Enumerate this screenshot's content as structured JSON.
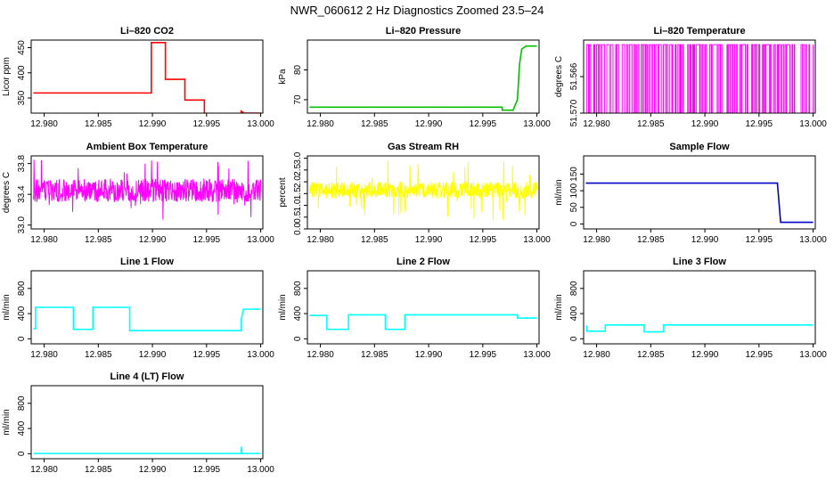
{
  "figure": {
    "title": "NWR_060612  2 Hz Diagnostics Zoomed 23.5–24"
  },
  "chart_data": [
    {
      "type": "line",
      "title": "Li–820 CO2",
      "ylabel": "Licor ppm",
      "color": "#ff0000",
      "xlim": [
        12.9788,
        13.0002
      ],
      "ylim": [
        320,
        465
      ],
      "xticks": [
        "12.980",
        "12.985",
        "12.990",
        "12.995",
        "13.000"
      ],
      "yticks": [
        350,
        400,
        450
      ],
      "series": [
        {
          "x": [
            12.979,
            12.9899,
            12.9899,
            12.9912,
            12.9912,
            12.993,
            12.993,
            12.9948,
            12.9948,
            12.9982,
            12.9982,
            12.9986,
            12.9986,
            13.0
          ],
          "values": [
            360,
            360,
            460,
            460,
            387,
            387,
            346,
            346,
            318,
            318,
            324,
            318,
            320,
            320
          ]
        }
      ]
    },
    {
      "type": "line",
      "title": "Li–820 Pressure",
      "ylabel": "kPa",
      "color": "#00c000",
      "xlim": [
        12.9788,
        13.0002
      ],
      "ylim": [
        65.5,
        90
      ],
      "xticks": [
        "12.980",
        "12.985",
        "12.990",
        "12.995",
        "13.000"
      ],
      "yticks": [
        70,
        80
      ],
      "series": [
        {
          "x": [
            12.979,
            12.9968,
            12.9968,
            12.9978,
            12.9982,
            12.9984,
            12.9986,
            12.999,
            13.0
          ],
          "values": [
            67.5,
            67.5,
            66.5,
            66.5,
            70,
            82,
            87,
            88,
            88
          ]
        }
      ]
    },
    {
      "type": "line",
      "title": "Li–820 Temperature",
      "ylabel": "degrees C",
      "color": "#ff00ff",
      "xlim": [
        12.9788,
        13.0002
      ],
      "ylim": [
        51.57,
        51.562
      ],
      "xticks": [
        "12.980",
        "12.985",
        "12.990",
        "12.995",
        "13.000"
      ],
      "yticks": [
        51.57,
        51.566
      ],
      "ytick_labels": [
        "51.570",
        "51.566"
      ],
      "levels": [
        51.57,
        51.5625
      ],
      "series": [
        {
          "x": [
            12.979,
            13.0
          ],
          "values": [
            51.57,
            51.5625
          ]
        }
      ]
    },
    {
      "type": "line",
      "title": "Ambient Box Temperature",
      "ylabel": "degrees C",
      "color": "#ff00ff",
      "xlim": [
        12.9788,
        13.0002
      ],
      "ylim": [
        32.95,
        33.9
      ],
      "xticks": [
        "12.980",
        "12.985",
        "12.990",
        "12.995",
        "13.000"
      ],
      "yticks": [
        33.0,
        33.4,
        33.8
      ],
      "ytick_labels": [
        "33.0",
        "33.4",
        "33.8"
      ],
      "noise": {
        "center": 33.45,
        "amplitude": 0.15,
        "spike": 0.4
      },
      "series": [
        {
          "x": [
            12.979,
            13.0
          ],
          "values": [
            33.45,
            33.45
          ]
        }
      ]
    },
    {
      "type": "line",
      "title": "Gas Stream RH",
      "ylabel": "percent",
      "color": "#ffff00",
      "xlim": [
        12.9788,
        13.0002
      ],
      "ylim": [
        0,
        3.1
      ],
      "xticks": [
        "12.980",
        "12.985",
        "12.990",
        "12.995",
        "13.000"
      ],
      "yticks": [
        0.0,
        0.5,
        1.0,
        1.5,
        2.0,
        2.5,
        3.0
      ],
      "ytick_labels": [
        "0.0",
        "0.5",
        "1.0",
        "1.5",
        "2.0",
        "2.5",
        "3.0"
      ],
      "noise": {
        "center": 1.65,
        "amplitude": 0.35,
        "spike": 1.3
      },
      "series": [
        {
          "x": [
            12.979,
            13.0
          ],
          "values": [
            1.65,
            1.65
          ]
        }
      ]
    },
    {
      "type": "line",
      "title": "Sample Flow",
      "ylabel": "ml/min",
      "color": "#0000c8",
      "xlim": [
        12.9788,
        13.0002
      ],
      "ylim": [
        -15,
        205
      ],
      "xticks": [
        "12.980",
        "12.985",
        "12.990",
        "12.995",
        "13.000"
      ],
      "yticks": [
        0,
        50,
        100,
        150
      ],
      "series": [
        {
          "x": [
            12.979,
            12.9967,
            12.9967,
            12.997,
            13.0
          ],
          "values": [
            123,
            123,
            123,
            5,
            5
          ]
        }
      ]
    },
    {
      "type": "line",
      "title": "Line 1 Flow",
      "ylabel": "ml/min",
      "color": "#00ffff",
      "xlim": [
        12.9788,
        13.0002
      ],
      "ylim": [
        -80,
        1080
      ],
      "xticks": [
        "12.980",
        "12.985",
        "12.990",
        "12.995",
        "13.000"
      ],
      "yticks": [
        0,
        400,
        800
      ],
      "series": [
        {
          "x": [
            12.979,
            12.9792,
            12.9792,
            12.9827,
            12.9827,
            12.9845,
            12.9845,
            12.9879,
            12.9879,
            12.9982,
            12.9982,
            12.9984,
            13.0
          ],
          "values": [
            160,
            160,
            500,
            500,
            150,
            150,
            500,
            500,
            130,
            130,
            300,
            470,
            470
          ]
        }
      ]
    },
    {
      "type": "line",
      "title": "Line 2 Flow",
      "ylabel": "ml/min",
      "color": "#00ffff",
      "xlim": [
        12.9788,
        13.0002
      ],
      "ylim": [
        -80,
        1080
      ],
      "xticks": [
        "12.980",
        "12.985",
        "12.990",
        "12.995",
        "13.000"
      ],
      "yticks": [
        0,
        400,
        800
      ],
      "series": [
        {
          "x": [
            12.979,
            12.9806,
            12.9806,
            12.9826,
            12.9826,
            12.986,
            12.986,
            12.9878,
            12.9878,
            12.9982,
            12.9982,
            13.0
          ],
          "values": [
            370,
            370,
            150,
            150,
            380,
            380,
            150,
            150,
            380,
            380,
            330,
            330
          ]
        }
      ]
    },
    {
      "type": "line",
      "title": "Line 3 Flow",
      "ylabel": "ml/min",
      "color": "#00ffff",
      "xlim": [
        12.9788,
        13.0002
      ],
      "ylim": [
        -80,
        1080
      ],
      "xticks": [
        "12.980",
        "12.985",
        "12.990",
        "12.995",
        "13.000"
      ],
      "yticks": [
        0,
        400,
        800
      ],
      "series": [
        {
          "x": [
            12.979,
            12.9791,
            12.9791,
            12.9808,
            12.9808,
            12.9844,
            12.9844,
            12.9862,
            12.9862,
            13.0
          ],
          "values": [
            200,
            200,
            120,
            120,
            220,
            220,
            110,
            110,
            220,
            220
          ]
        }
      ]
    },
    {
      "type": "line",
      "title": "Line 4 (LT) Flow",
      "ylabel": "ml/min",
      "color": "#00ffff",
      "xlim": [
        12.9788,
        13.0002
      ],
      "ylim": [
        -80,
        1080
      ],
      "xticks": [
        "12.980",
        "12.985",
        "12.990",
        "12.995",
        "13.000"
      ],
      "yticks": [
        0,
        400,
        800
      ],
      "series": [
        {
          "x": [
            12.979,
            12.9982,
            12.99822,
            12.99826,
            12.9983,
            13.0
          ],
          "values": [
            3,
            3,
            110,
            3,
            3,
            3
          ]
        }
      ]
    }
  ]
}
